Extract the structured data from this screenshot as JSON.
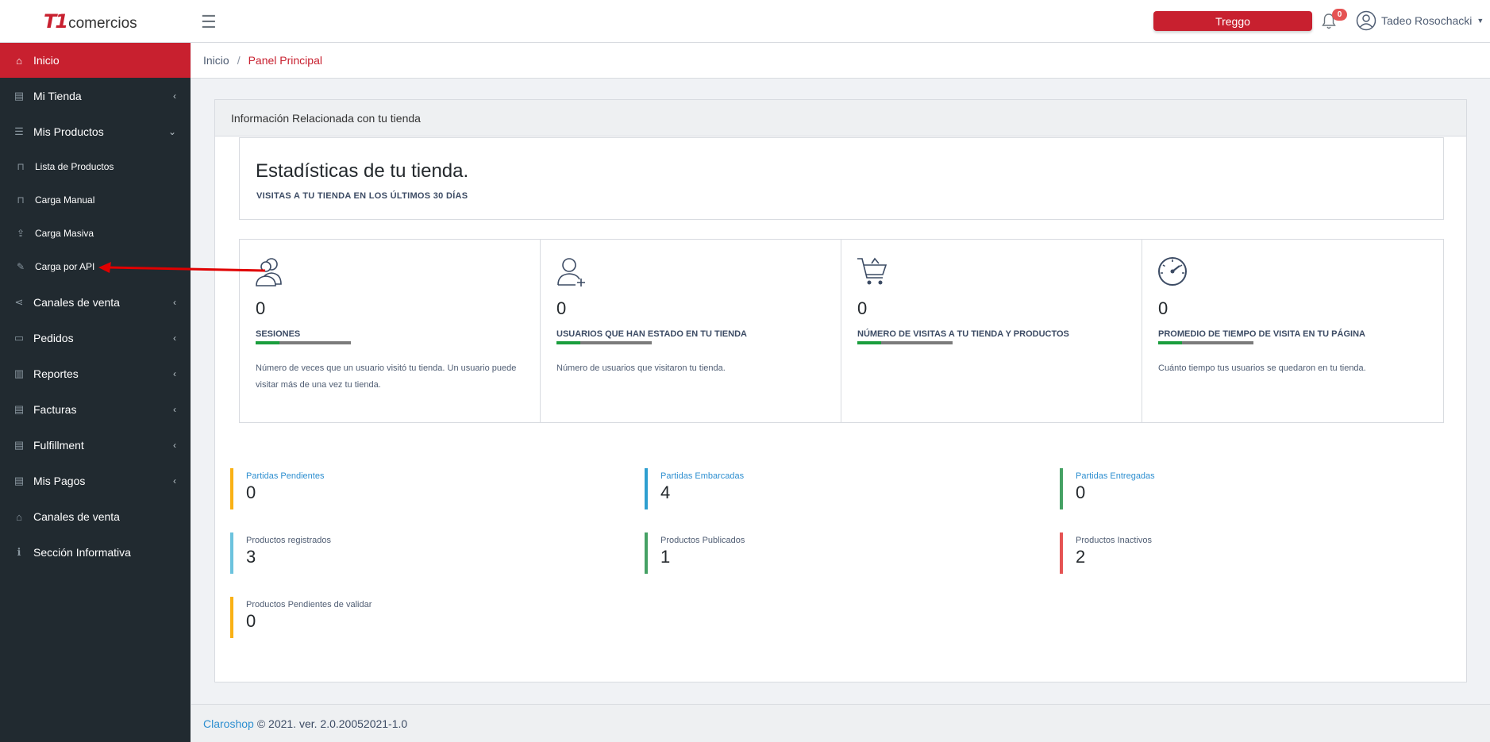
{
  "header": {
    "logo_mark": "T1",
    "logo_text": "comercios",
    "treggo_label": "Treggo",
    "notification_count": "0",
    "user_name": "Tadeo Rosochacki"
  },
  "sidebar": {
    "items": [
      {
        "label": "Inicio",
        "icon": "home-icon"
      },
      {
        "label": "Mi Tienda",
        "icon": "store-icon"
      },
      {
        "label": "Mis Productos",
        "icon": "database-icon"
      },
      {
        "label": "Lista de Productos",
        "icon": "bag-icon"
      },
      {
        "label": "Carga Manual",
        "icon": "bag-icon"
      },
      {
        "label": "Carga Masiva",
        "icon": "upload-icon"
      },
      {
        "label": "Carga por API",
        "icon": "pencil-icon"
      },
      {
        "label": "Canales de venta",
        "icon": "share-icon"
      },
      {
        "label": "Pedidos",
        "icon": "list-icon"
      },
      {
        "label": "Reportes",
        "icon": "chart-icon"
      },
      {
        "label": "Facturas",
        "icon": "store-icon"
      },
      {
        "label": "Fulfillment",
        "icon": "store-icon"
      },
      {
        "label": "Mis Pagos",
        "icon": "store-icon"
      },
      {
        "label": "Canales de venta",
        "icon": "home-icon"
      },
      {
        "label": "Sección Informativa",
        "icon": "info-icon"
      }
    ]
  },
  "breadcrumb": {
    "home": "Inicio",
    "separator": "/",
    "current": "Panel Principal"
  },
  "card": {
    "header": "Información Relacionada con tu tienda",
    "stats_title": "Estadísticas de tu tienda.",
    "stats_subtitle": "VISITAS A TU TIENDA EN LOS ÚLTIMOS 30 DÍAS"
  },
  "metrics": [
    {
      "value": "0",
      "label": "SESIONES",
      "progress": 0.25,
      "desc": "Número de veces que un usuario visitó tu tienda. Un usuario puede visitar más de una vez tu tienda."
    },
    {
      "value": "0",
      "label": "USUARIOS QUE HAN ESTADO EN TU TIENDA",
      "progress": 0.25,
      "desc": "Número de usuarios que visitaron tu tienda."
    },
    {
      "value": "0",
      "label": "NÚMERO DE VISITAS A TU TIENDA Y PRODUCTOS",
      "progress": 0.25,
      "desc": ""
    },
    {
      "value": "0",
      "label": "PROMEDIO DE TIEMPO DE VISITA EN TU PÁGINA",
      "progress": 0.25,
      "desc": "Cuánto tiempo tus usuarios se quedaron en tu tienda."
    }
  ],
  "kpis": [
    {
      "label": "Partidas Pendientes",
      "value": "0",
      "color": "#f9b115"
    },
    {
      "label": "Partidas Embarcadas",
      "value": "4",
      "color": "#2e9fd0"
    },
    {
      "label": "Partidas Entregadas",
      "value": "0",
      "color": "#45a164"
    },
    {
      "label": "Productos registrados",
      "value": "3",
      "color": "#6cc3de"
    },
    {
      "label": "Productos Publicados",
      "value": "1",
      "color": "#45a164"
    },
    {
      "label": "Productos Inactivos",
      "value": "2",
      "color": "#e55353"
    },
    {
      "label": "Productos Pendientes de validar",
      "value": "0",
      "color": "#f9b115"
    }
  ],
  "footer": {
    "link": "Claroshop",
    "text": "© 2021. ver. 2.0.20052021-1.0"
  },
  "colors": {
    "brand": "#c8202f",
    "sidebar": "#212a30",
    "progress": "#1a9e3d"
  }
}
